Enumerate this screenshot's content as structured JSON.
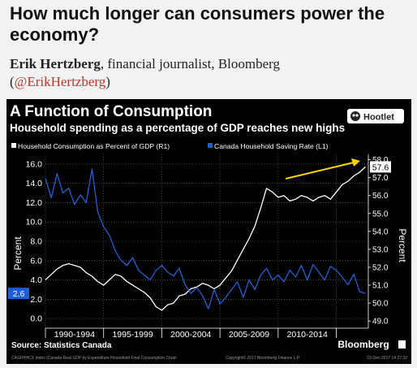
{
  "post": {
    "headline": "How much longer can consumers power the economy?",
    "author_name": "Erik Hertzberg",
    "author_desc": ", financial journalist, Bloomberg",
    "handle_open": "(",
    "handle": "@ErikHertzberg",
    "handle_close": ")"
  },
  "badge": {
    "label": "Hootlet",
    "icon": "hootlet-owl-icon"
  },
  "footer": {
    "source": "Source: Statistics Canada",
    "brand": "Bloomberg",
    "fineprint_left": "CAGFHHCX Index (Canada Real GDP by Expenditure Household Final Consumption Chain",
    "fineprint_mid": "Copyright© 2017 Bloomberg Finance L.P.",
    "fineprint_right": "03-Dec-2017 14:27:32"
  },
  "colors": {
    "background": "#000000",
    "consumption": "#ffffff",
    "saving": "#1f5fd6",
    "arrow": "#ffd400",
    "text": "#ffffff",
    "grid": "#6a6a6a"
  },
  "chart_data": {
    "type": "line",
    "title": "A Function of Consumption",
    "subtitle": "Household spending as a percentage of GDP reaches new highs",
    "legend_position": "top",
    "grid": true,
    "x_range": [
      1990.0,
      2017.75
    ],
    "xtick_labels": [
      "1990-1994",
      "1995-1999",
      "2000-2004",
      "2005-2009",
      "2010-2014"
    ],
    "y_left": {
      "label": "Percent",
      "range": [
        -1,
        17
      ],
      "ticks": [
        0.0,
        2.0,
        4.0,
        6.0,
        8.0,
        10.0,
        12.0,
        14.0,
        16.0
      ],
      "tick_labels": [
        "0.0",
        "2.0",
        "4.0",
        "6.0",
        "8.0",
        "10.0",
        "12.0",
        "14.0",
        "16.0"
      ]
    },
    "y_right": {
      "label": "Percent",
      "range": [
        48.6,
        58.3
      ],
      "ticks": [
        49,
        50,
        51,
        52,
        53,
        54,
        55,
        56,
        57,
        58
      ],
      "tick_labels": [
        "49.0",
        "50.0",
        "51.0",
        "52.0",
        "53.0",
        "54.0",
        "55.0",
        "56.0",
        "57.0",
        "58.0"
      ]
    },
    "series": [
      {
        "name": "Household Consumption as Percent of GDP (R1)",
        "axis": "right",
        "color": "#ffffff",
        "last_label": "57.6",
        "x": [
          1990.0,
          1990.5,
          1991.0,
          1991.5,
          1992.0,
          1992.5,
          1993.0,
          1993.5,
          1994.0,
          1994.5,
          1995.0,
          1995.5,
          1996.0,
          1996.5,
          1997.0,
          1997.5,
          1998.0,
          1998.5,
          1999.0,
          1999.5,
          2000.0,
          2000.5,
          2001.0,
          2001.5,
          2002.0,
          2002.5,
          2003.0,
          2003.5,
          2004.0,
          2004.5,
          2005.0,
          2005.5,
          2006.0,
          2006.5,
          2007.0,
          2007.5,
          2008.0,
          2008.5,
          2009.0,
          2009.5,
          2010.0,
          2010.5,
          2011.0,
          2011.5,
          2012.0,
          2012.5,
          2013.0,
          2013.5,
          2014.0,
          2014.5,
          2015.0,
          2015.5,
          2016.0,
          2016.5,
          2017.0,
          2017.5
        ],
        "values": [
          51.3,
          51.6,
          51.9,
          52.1,
          52.2,
          52.1,
          52.0,
          51.7,
          51.5,
          51.2,
          51.0,
          51.3,
          51.6,
          51.5,
          51.2,
          51.0,
          50.8,
          50.6,
          50.3,
          49.8,
          49.6,
          49.9,
          50.0,
          50.4,
          50.5,
          50.8,
          50.9,
          51.1,
          51.0,
          50.8,
          51.0,
          51.4,
          51.8,
          52.4,
          53.0,
          53.6,
          54.3,
          55.3,
          56.4,
          56.2,
          55.9,
          56.0,
          55.7,
          55.8,
          56.0,
          55.9,
          55.7,
          55.9,
          56.0,
          55.8,
          56.2,
          56.6,
          56.8,
          57.1,
          57.3,
          57.6
        ]
      },
      {
        "name": "Canada Household Saving Rate (L1)",
        "axis": "left",
        "color": "#1f5fd6",
        "last_label": "2.6",
        "x": [
          1990.0,
          1990.5,
          1991.0,
          1991.5,
          1992.0,
          1992.5,
          1993.0,
          1993.5,
          1994.0,
          1994.5,
          1995.0,
          1995.5,
          1996.0,
          1996.5,
          1997.0,
          1997.5,
          1998.0,
          1998.5,
          1999.0,
          1999.5,
          2000.0,
          2000.5,
          2001.0,
          2001.5,
          2002.0,
          2002.5,
          2003.0,
          2003.5,
          2004.0,
          2004.5,
          2005.0,
          2005.5,
          2006.0,
          2006.5,
          2007.0,
          2007.5,
          2008.0,
          2008.5,
          2009.0,
          2009.5,
          2010.0,
          2010.5,
          2011.0,
          2011.5,
          2012.0,
          2012.5,
          2013.0,
          2013.5,
          2014.0,
          2014.5,
          2015.0,
          2015.5,
          2016.0,
          2016.5,
          2017.0,
          2017.5
        ],
        "values": [
          14.5,
          12.5,
          15.0,
          13.0,
          13.5,
          11.8,
          12.8,
          12.0,
          15.5,
          11.0,
          9.5,
          8.6,
          7.0,
          6.0,
          5.5,
          6.3,
          5.0,
          4.5,
          4.0,
          5.0,
          5.5,
          4.8,
          4.4,
          5.2,
          3.5,
          2.6,
          3.2,
          2.4,
          1.0,
          3.0,
          1.5,
          2.2,
          3.0,
          3.8,
          2.2,
          4.0,
          3.0,
          4.5,
          5.2,
          4.0,
          4.5,
          3.8,
          5.0,
          4.3,
          5.5,
          4.0,
          5.6,
          4.8,
          4.0,
          5.4,
          5.0,
          4.3,
          3.5,
          4.6,
          2.8,
          2.6
        ]
      }
    ]
  }
}
